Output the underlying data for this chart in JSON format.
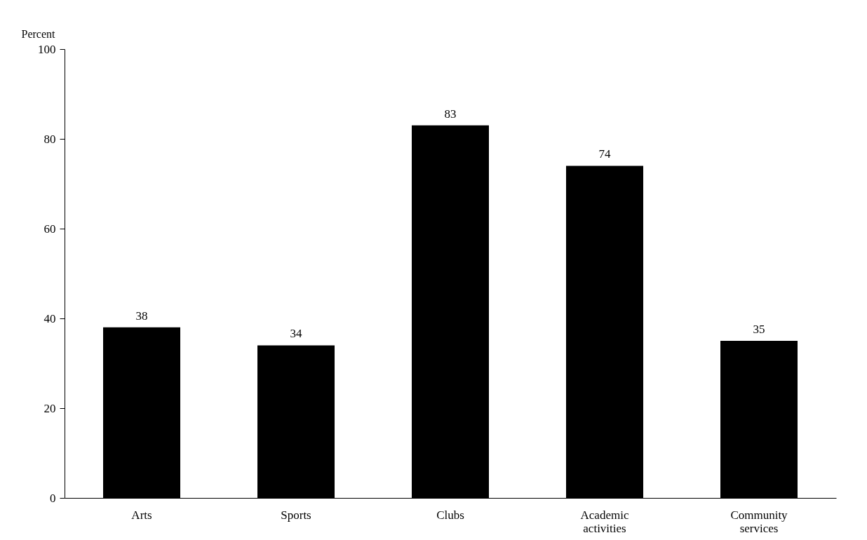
{
  "chart_data": {
    "type": "bar",
    "ylabel": "Percent",
    "categories": [
      "Arts",
      "Sports",
      "Clubs",
      "Academic activities",
      "Community services"
    ],
    "values": [
      38,
      34,
      83,
      74,
      35
    ],
    "color": "#000000",
    "ylim": [
      0,
      100
    ],
    "yticks": [
      0,
      20,
      40,
      60,
      80,
      100
    ],
    "grid": false,
    "data_labels": true
  }
}
